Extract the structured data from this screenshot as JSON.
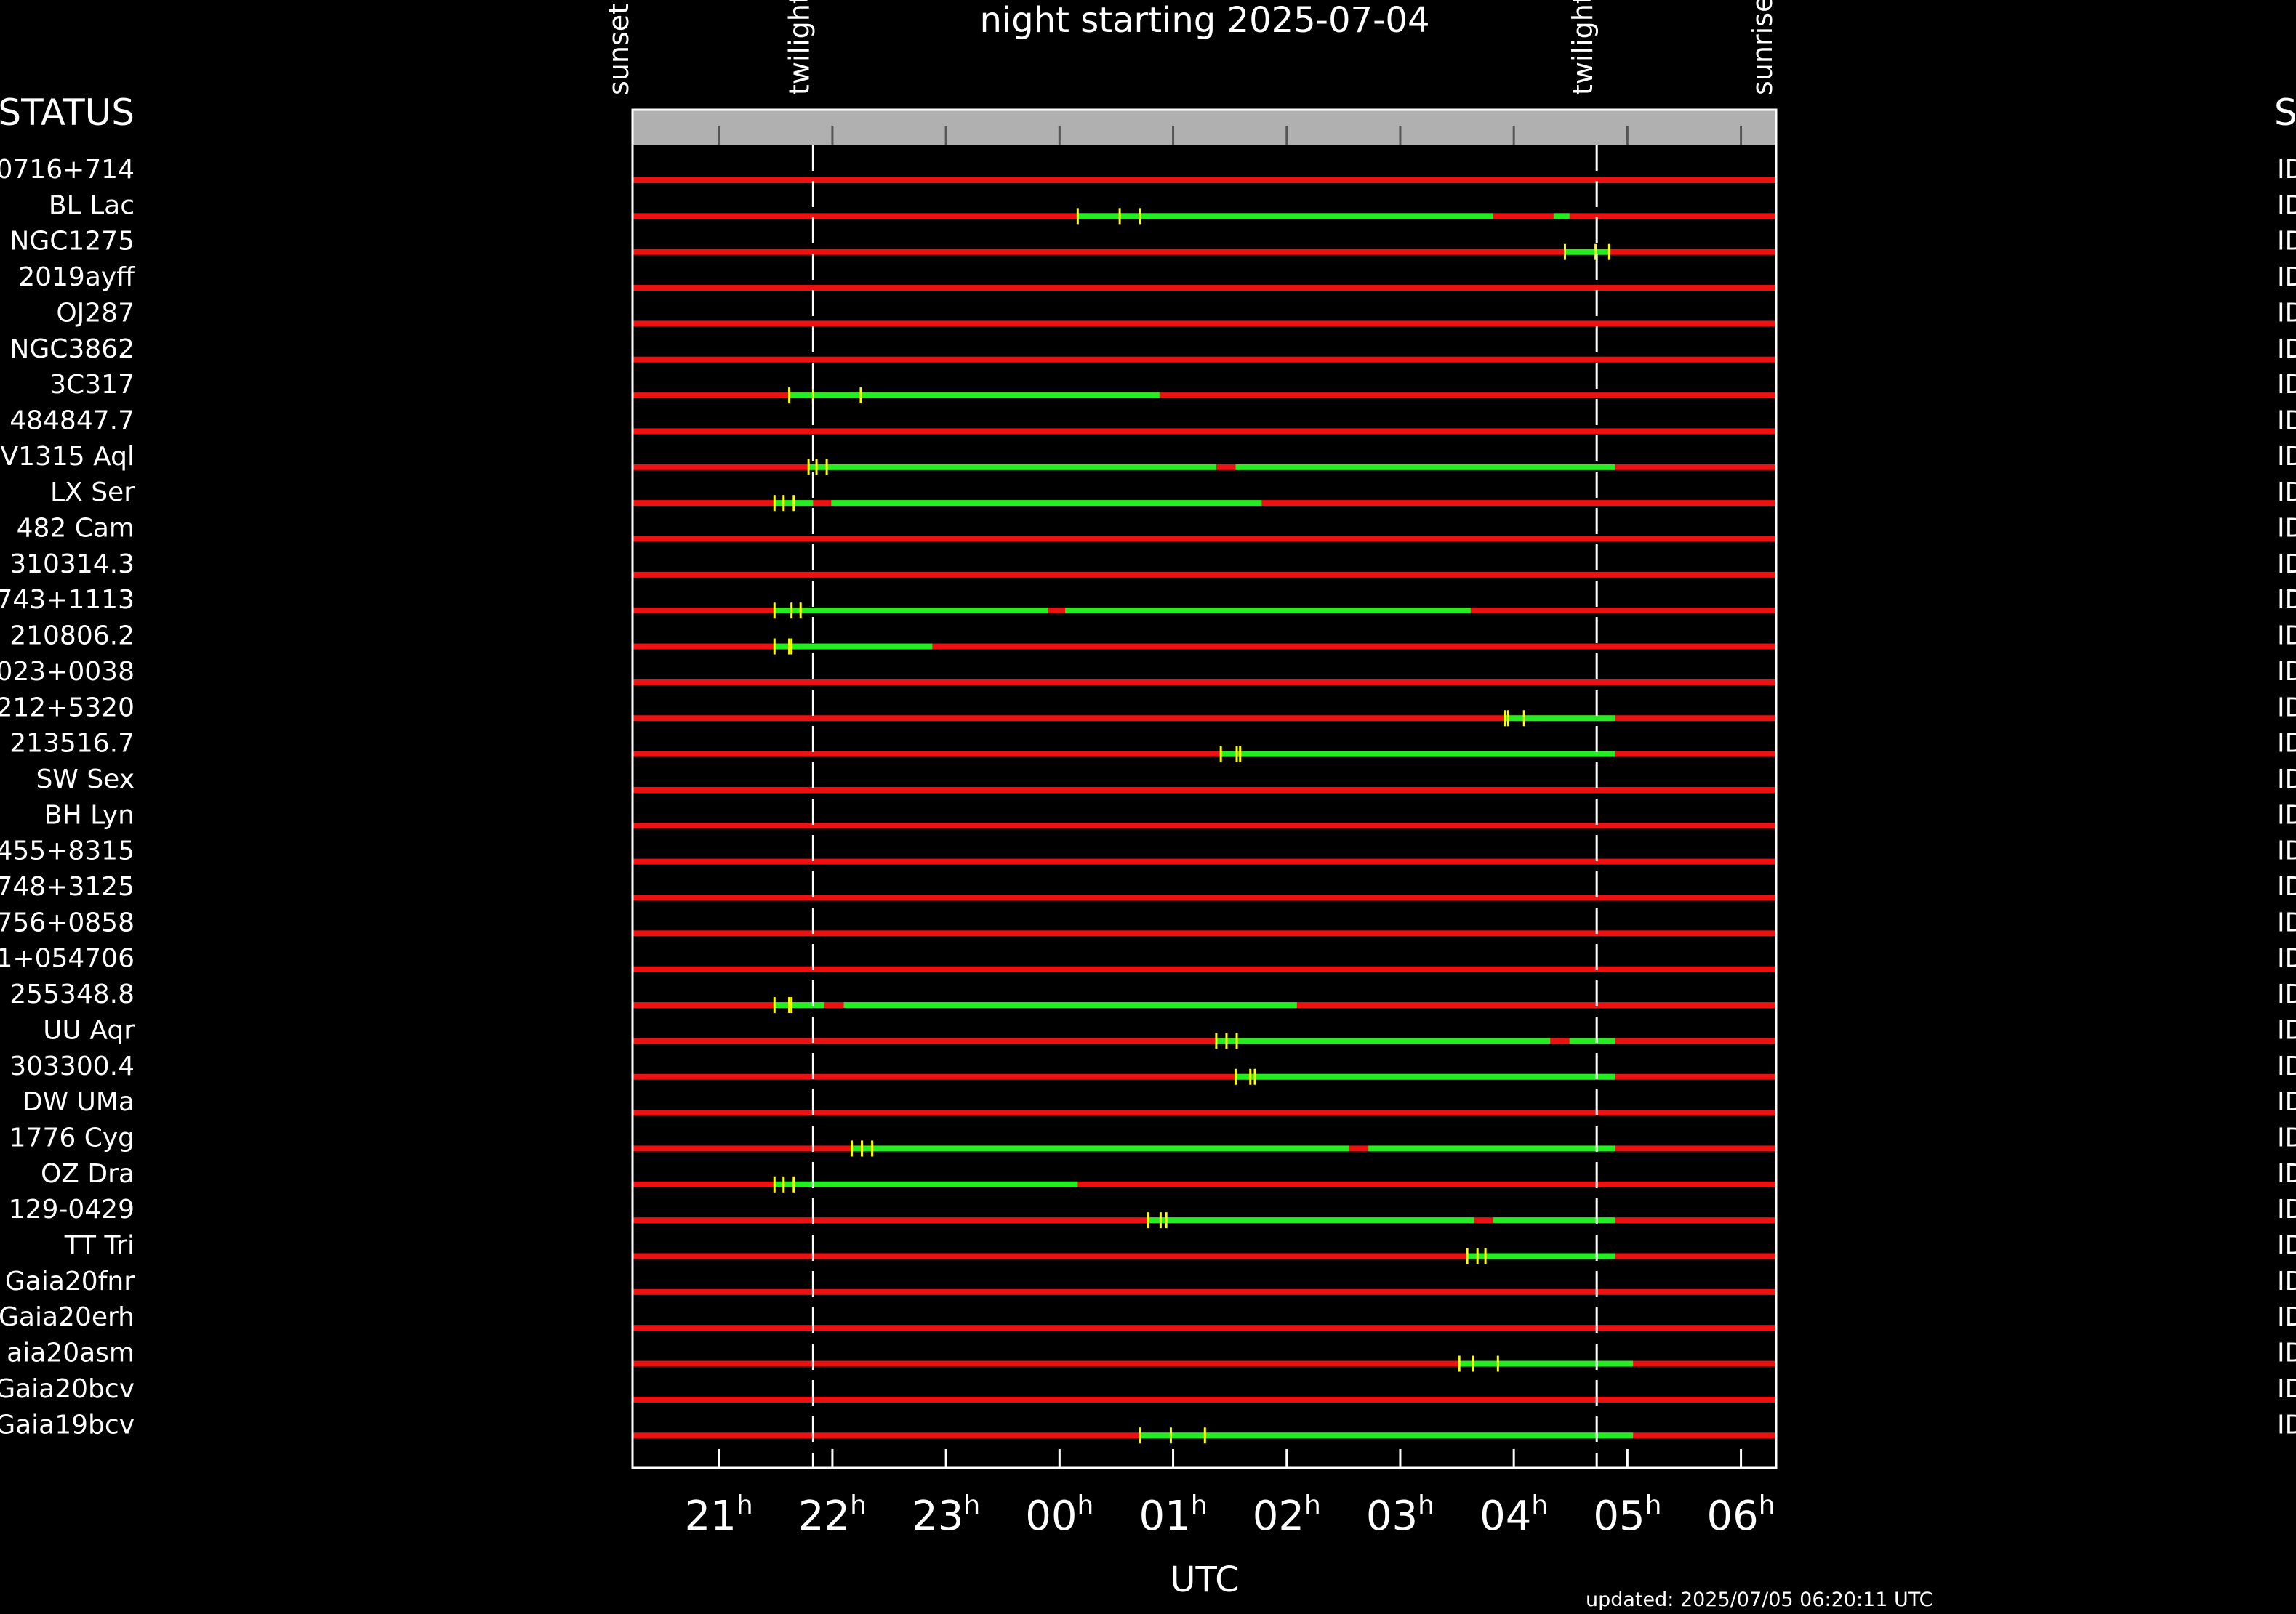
{
  "chart_data": {
    "type": "schedule",
    "title": "night starting 2025-07-04",
    "xlabel": "UTC",
    "updated": "updated: 2025/07/05 06:20:11 UTC",
    "left_header": "STATUS",
    "right_header": "S",
    "xlim": [
      20.24,
      30.31
    ],
    "xticks": [
      21,
      22,
      23,
      {
        "value": 24,
        "label": "00"
      },
      {
        "value": 25,
        "label": "01"
      },
      {
        "value": 26,
        "label": "02"
      },
      {
        "value": 27,
        "label": "03"
      },
      {
        "value": 28,
        "label": "04"
      },
      {
        "value": 29,
        "label": "05"
      },
      {
        "value": 30,
        "label": "06"
      }
    ],
    "tick_suffix": "h",
    "events": [
      {
        "label": "sunset",
        "value": 20.24
      },
      {
        "label": "twilight",
        "value": 21.83
      },
      {
        "label": "twilight",
        "value": 28.73
      },
      {
        "label": "sunrise",
        "value": 30.31
      }
    ],
    "track_color": "#ee1111",
    "window_color": "#22ee22",
    "marker_color": "#ffff00",
    "band_color": "#b0b0b0",
    "rows": [
      {
        "name": "0716+714",
        "status": "ID",
        "windows": [],
        "markers": []
      },
      {
        "name": "BL Lac",
        "status": "ID",
        "windows": [
          [
            24.16,
            27.82
          ],
          [
            28.35,
            28.49
          ]
        ],
        "markers": [
          24.16,
          24.53,
          24.71
        ]
      },
      {
        "name": "NGC1275",
        "status": "ID",
        "windows": [
          [
            28.45,
            28.84
          ]
        ],
        "markers": [
          28.45,
          28.72,
          28.84
        ]
      },
      {
        "name": "2019ayff",
        "status": "ID",
        "windows": [],
        "markers": []
      },
      {
        "name": "OJ287",
        "status": "ID",
        "windows": [],
        "markers": []
      },
      {
        "name": "NGC3862",
        "status": "ID",
        "windows": [],
        "markers": []
      },
      {
        "name": "3C317",
        "status": "ID",
        "windows": [
          [
            21.62,
            24.88
          ]
        ],
        "markers": [
          21.62,
          21.83,
          22.25
        ]
      },
      {
        "name": "484847.7",
        "status": "ID",
        "windows": [],
        "markers": []
      },
      {
        "name": "V1315 Aql",
        "status": "ID",
        "windows": [
          [
            21.79,
            25.38
          ],
          [
            25.55,
            28.89
          ]
        ],
        "markers": [
          21.79,
          21.86,
          21.95
        ]
      },
      {
        "name": "LX Ser",
        "status": "ID",
        "windows": [
          [
            21.49,
            21.83
          ],
          [
            21.99,
            25.78
          ]
        ],
        "markers": [
          21.49,
          21.57,
          21.66
        ]
      },
      {
        "name": "482 Cam",
        "status": "ID",
        "windows": [],
        "markers": []
      },
      {
        "name": "310314.3",
        "status": "ID",
        "windows": [],
        "markers": []
      },
      {
        "name": "743+1113",
        "status": "ID",
        "windows": [
          [
            21.49,
            23.9
          ],
          [
            24.05,
            27.62
          ]
        ],
        "markers": [
          21.49,
          21.64,
          21.72
        ]
      },
      {
        "name": "210806.2",
        "status": "ID",
        "windows": [
          [
            21.49,
            22.88
          ]
        ],
        "markers": [
          21.49,
          21.62,
          21.64
        ]
      },
      {
        "name": "023+0038",
        "status": "ID",
        "windows": [],
        "markers": []
      },
      {
        "name": "212+5320",
        "status": "ID",
        "windows": [
          [
            27.92,
            28.89
          ]
        ],
        "markers": [
          27.92,
          27.95,
          28.09
        ]
      },
      {
        "name": "213516.7",
        "status": "ID",
        "windows": [
          [
            25.42,
            28.89
          ]
        ],
        "markers": [
          25.42,
          25.56,
          25.59
        ]
      },
      {
        "name": "SW Sex",
        "status": "ID",
        "windows": [],
        "markers": []
      },
      {
        "name": "BH Lyn",
        "status": "ID",
        "windows": [],
        "markers": []
      },
      {
        "name": "455+8315",
        "status": "ID",
        "windows": [],
        "markers": []
      },
      {
        "name": "748+3125",
        "status": "ID",
        "windows": [],
        "markers": []
      },
      {
        "name": "756+0858",
        "status": "ID",
        "windows": [],
        "markers": []
      },
      {
        "name": "1+054706",
        "status": "ID",
        "windows": [],
        "markers": []
      },
      {
        "name": "255348.8",
        "status": "ID",
        "windows": [
          [
            21.49,
            21.93
          ],
          [
            22.1,
            26.09
          ]
        ],
        "markers": [
          21.49,
          21.62,
          21.64
        ]
      },
      {
        "name": "UU Aqr",
        "status": "ID",
        "windows": [
          [
            25.38,
            28.32
          ],
          [
            28.49,
            28.89
          ]
        ],
        "markers": [
          25.38,
          25.47,
          25.56
        ]
      },
      {
        "name": "303300.4",
        "status": "ID",
        "windows": [
          [
            25.55,
            28.89
          ]
        ],
        "markers": [
          25.55,
          25.68,
          25.72
        ]
      },
      {
        "name": "DW UMa",
        "status": "ID",
        "windows": [],
        "markers": []
      },
      {
        "name": "1776 Cyg",
        "status": "ID",
        "windows": [
          [
            22.17,
            26.55
          ],
          [
            26.72,
            28.89
          ]
        ],
        "markers": [
          22.17,
          22.26,
          22.35
        ]
      },
      {
        "name": "OZ Dra",
        "status": "ID",
        "windows": [
          [
            21.49,
            24.16
          ]
        ],
        "markers": [
          21.49,
          21.57,
          21.66
        ]
      },
      {
        "name": "129-0429",
        "status": "ID",
        "windows": [
          [
            24.78,
            27.65
          ],
          [
            27.82,
            28.89
          ]
        ],
        "markers": [
          24.78,
          24.89,
          24.94
        ]
      },
      {
        "name": "TT Tri",
        "status": "ID",
        "windows": [
          [
            27.59,
            28.89
          ]
        ],
        "markers": [
          27.59,
          27.68,
          27.75
        ]
      },
      {
        "name": "Gaia20fnr",
        "status": "ID",
        "windows": [],
        "markers": []
      },
      {
        "name": "Gaia20erh",
        "status": "ID",
        "windows": [],
        "markers": []
      },
      {
        "name": "aia20asm",
        "status": "ID",
        "windows": [
          [
            27.52,
            29.05
          ]
        ],
        "markers": [
          27.52,
          27.64,
          27.86
        ]
      },
      {
        "name": "Gaia20bcv",
        "status": "ID",
        "windows": [],
        "markers": []
      },
      {
        "name": "Gaia19bcv",
        "status": "ID",
        "windows": [
          [
            24.71,
            29.05
          ]
        ],
        "markers": [
          24.71,
          24.98,
          25.28
        ]
      }
    ]
  }
}
